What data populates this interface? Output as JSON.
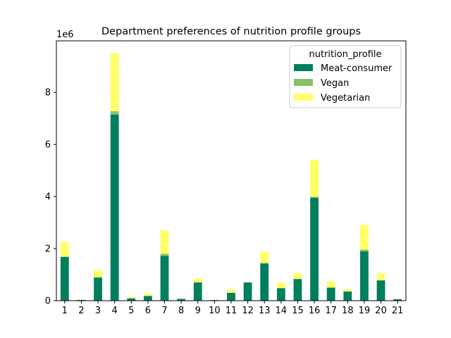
{
  "chart_data": {
    "type": "bar",
    "stacked": true,
    "title": "Department preferences of nutrition profile groups",
    "xlabel": "",
    "ylabel": "",
    "y_offset_label": "1e6",
    "y_scale": 1000000,
    "ylim": [
      0,
      9980000
    ],
    "yticks": [
      0,
      2,
      4,
      6,
      8
    ],
    "categories": [
      "1",
      "2",
      "3",
      "4",
      "5",
      "6",
      "7",
      "8",
      "9",
      "10",
      "11",
      "12",
      "13",
      "14",
      "15",
      "16",
      "17",
      "18",
      "19",
      "20",
      "21"
    ],
    "series": [
      {
        "name": "Meat-consumer",
        "color": "#007f5f",
        "values": [
          1680000,
          30000,
          890000,
          7150000,
          90000,
          180000,
          1720000,
          70000,
          700000,
          25000,
          300000,
          700000,
          1430000,
          480000,
          830000,
          3950000,
          500000,
          350000,
          1900000,
          780000,
          60000
        ]
      },
      {
        "name": "Vegan",
        "color": "#88c06a",
        "values": [
          15000,
          0,
          10000,
          130000,
          0,
          5000,
          80000,
          0,
          5000,
          0,
          5000,
          0,
          20000,
          5000,
          10000,
          40000,
          5000,
          5000,
          60000,
          10000,
          0
        ]
      },
      {
        "name": "Vegetarian",
        "color": "#ffff66",
        "values": [
          555000,
          5000,
          260000,
          2220000,
          60000,
          85000,
          900000,
          10000,
          145000,
          5000,
          125000,
          0,
          430000,
          215000,
          210000,
          1420000,
          225000,
          75000,
          950000,
          260000,
          5000
        ]
      }
    ],
    "legend": {
      "title": "nutrition_profile",
      "placement": "top-right"
    },
    "grid": false
  }
}
